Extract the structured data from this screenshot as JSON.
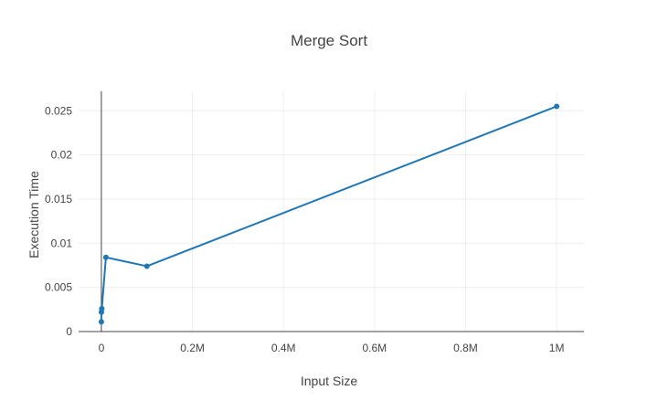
{
  "chart_data": {
    "type": "line",
    "title": "Merge Sort",
    "xlabel": "Input Size",
    "ylabel": "Execution Time",
    "xlim": [
      -50000,
      1060000
    ],
    "ylim": [
      0,
      0.0272
    ],
    "x_ticks": [
      {
        "value": 0,
        "label": "0"
      },
      {
        "value": 200000,
        "label": "0.2M"
      },
      {
        "value": 400000,
        "label": "0.4M"
      },
      {
        "value": 600000,
        "label": "0.6M"
      },
      {
        "value": 800000,
        "label": "0.8M"
      },
      {
        "value": 1000000,
        "label": "1M"
      }
    ],
    "y_ticks": [
      {
        "value": 0,
        "label": "0"
      },
      {
        "value": 0.005,
        "label": "0.005"
      },
      {
        "value": 0.01,
        "label": "0.01"
      },
      {
        "value": 0.015,
        "label": "0.015"
      },
      {
        "value": 0.02,
        "label": "0.02"
      },
      {
        "value": 0.025,
        "label": "0.025"
      }
    ],
    "grid": true,
    "series": [
      {
        "color": "#1f77b4",
        "x": [
          10,
          100,
          1000,
          10000,
          100000,
          1000000
        ],
        "y": [
          0.0011,
          0.0022,
          0.0026,
          0.0084,
          0.0074,
          0.0255
        ]
      }
    ]
  }
}
